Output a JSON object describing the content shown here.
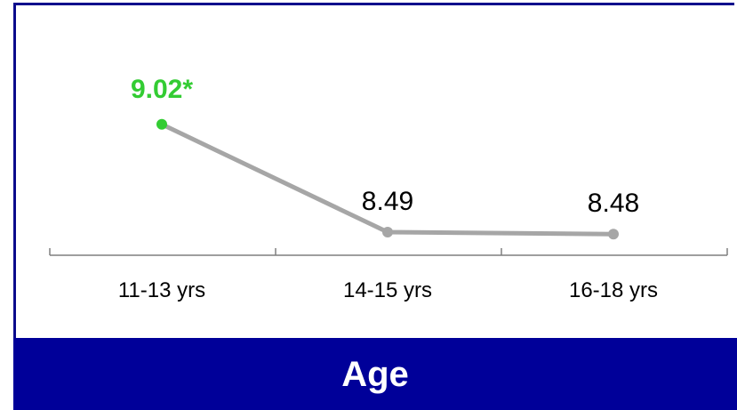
{
  "chart_data": {
    "type": "line",
    "categories": [
      "11-13 yrs",
      "14-15 yrs",
      "16-18 yrs"
    ],
    "values": [
      9.02,
      8.49,
      8.48
    ],
    "data_labels": [
      "9.02*",
      "8.49",
      "8.48"
    ],
    "highlight_index": 0,
    "xlabel": "Age",
    "ylim": [
      8.0,
      9.5
    ],
    "grid": false,
    "colors": {
      "line": "#a6a6a6",
      "highlight": "#33cc33",
      "label": "#000000",
      "axis": "#7f7f7f",
      "band": "#000099"
    }
  }
}
